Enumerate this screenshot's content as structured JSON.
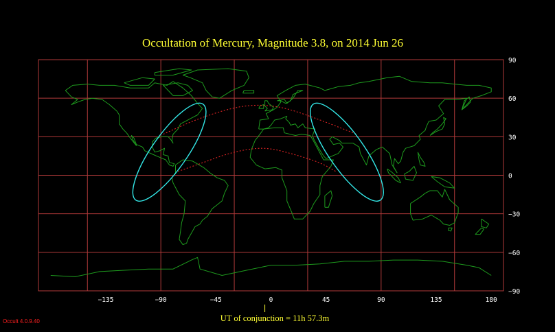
{
  "title": "Occultation  of  Mercury,      Magnitude 3.8,    on  2014 Jun 26",
  "footer": {
    "conjunction": "UT of conjunction = 11h 57.3m",
    "version": "Occult 4.0.9.40"
  },
  "axes": {
    "longitude_ticks": [
      180,
      -135,
      -90,
      -45,
      0,
      45,
      90,
      135
    ],
    "latitude_ticks": [
      90,
      60,
      30,
      0,
      -30,
      -60,
      -90
    ],
    "longitude_grid": [
      -150,
      -90,
      -30,
      30,
      90,
      150
    ]
  },
  "colors": {
    "background": "#000000",
    "title": "#ffff33",
    "grid": "#b23a3a",
    "coastline": "#1e9c1e",
    "path_limits": "#e02424",
    "visibility_curves": "#33e6e6",
    "version_text": "#ff2020"
  },
  "occultation": {
    "northern_limit": [
      [
        -88,
        32
      ],
      [
        -60,
        44
      ],
      [
        -30,
        53
      ],
      [
        -10,
        55
      ],
      [
        10,
        53
      ],
      [
        35,
        45
      ],
      [
        70,
        32
      ]
    ],
    "southern_limit": [
      [
        -76,
        3
      ],
      [
        -55,
        10
      ],
      [
        -35,
        17
      ],
      [
        -15,
        21
      ],
      [
        0,
        21
      ],
      [
        20,
        16
      ],
      [
        40,
        10
      ],
      [
        53,
        3
      ]
    ],
    "curves": [
      {
        "center": [
          -83,
          18
        ],
        "semi_axes": [
          4.5,
          24
        ],
        "tilt_deg": 35
      },
      {
        "center": [
          62,
          18
        ],
        "semi_axes": [
          4.5,
          24
        ],
        "tilt_deg": -35
      }
    ],
    "conjunction_longitude": -5
  }
}
